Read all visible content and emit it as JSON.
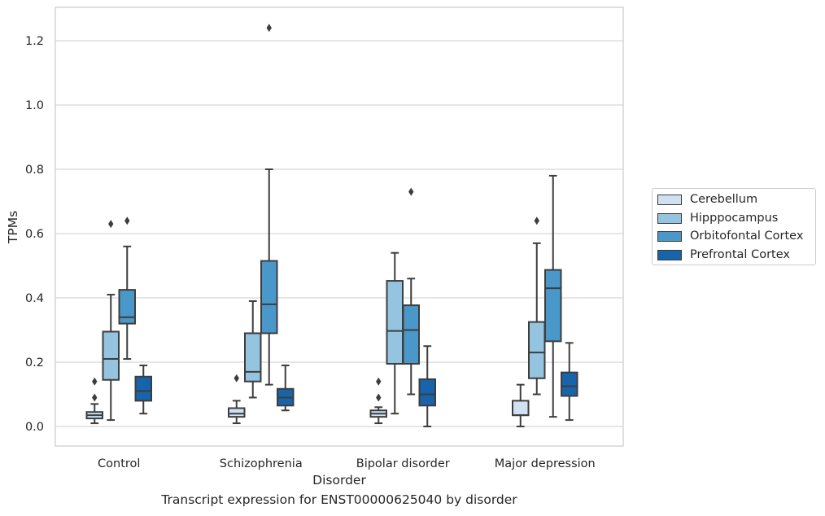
{
  "caption": "Transcript expression for ENST00000625040 by disorder",
  "chart_data": {
    "type": "boxplot",
    "xlabel": "Disorder",
    "ylabel": "TPMs",
    "ylim": [
      -0.06,
      1.3
    ],
    "yticks": [
      0.0,
      0.2,
      0.4,
      0.6,
      0.8,
      1.0,
      1.2
    ],
    "ytick_labels": [
      "0.0",
      "0.2",
      "0.4",
      "0.6",
      "0.8",
      "1.0",
      "1.2"
    ],
    "grid": "horizontal",
    "legend_position": "right",
    "categories": [
      "Control",
      "Schizophrenia",
      "Bipolar disorder",
      "Major depression"
    ],
    "series": [
      {
        "name": "Cerebellum",
        "color": "#d0e1f2",
        "boxes": [
          {
            "whislo": 0.01,
            "q1": 0.025,
            "med": 0.035,
            "q3": 0.045,
            "whishi": 0.07,
            "fliers": [
              0.09,
              0.14
            ]
          },
          {
            "whislo": 0.01,
            "q1": 0.03,
            "med": 0.04,
            "q3": 0.057,
            "whishi": 0.08,
            "fliers": [
              0.15
            ]
          },
          {
            "whislo": 0.01,
            "q1": 0.03,
            "med": 0.04,
            "q3": 0.05,
            "whishi": 0.06,
            "fliers": [
              0.09,
              0.14
            ]
          },
          {
            "whislo": 0.0,
            "q1": 0.035,
            "med": 0.035,
            "q3": 0.08,
            "whishi": 0.13,
            "fliers": []
          }
        ]
      },
      {
        "name": "Hipppocampus",
        "color": "#94c4df",
        "boxes": [
          {
            "whislo": 0.02,
            "q1": 0.145,
            "med": 0.21,
            "q3": 0.295,
            "whishi": 0.41,
            "fliers": [
              0.63
            ]
          },
          {
            "whislo": 0.09,
            "q1": 0.14,
            "med": 0.17,
            "q3": 0.29,
            "whishi": 0.39,
            "fliers": []
          },
          {
            "whislo": 0.04,
            "q1": 0.195,
            "med": 0.297,
            "q3": 0.453,
            "whishi": 0.54,
            "fliers": []
          },
          {
            "whislo": 0.1,
            "q1": 0.15,
            "med": 0.23,
            "q3": 0.325,
            "whishi": 0.57,
            "fliers": [
              0.64
            ]
          }
        ]
      },
      {
        "name": "Orbitofontal Cortex",
        "color": "#4a98c9",
        "boxes": [
          {
            "whislo": 0.21,
            "q1": 0.32,
            "med": 0.34,
            "q3": 0.425,
            "whishi": 0.56,
            "fliers": [
              0.64
            ]
          },
          {
            "whislo": 0.13,
            "q1": 0.29,
            "med": 0.38,
            "q3": 0.515,
            "whishi": 0.8,
            "fliers": [
              1.24
            ]
          },
          {
            "whislo": 0.1,
            "q1": 0.195,
            "med": 0.3,
            "q3": 0.377,
            "whishi": 0.46,
            "fliers": [
              0.73
            ]
          },
          {
            "whislo": 0.03,
            "q1": 0.265,
            "med": 0.43,
            "q3": 0.487,
            "whishi": 0.78,
            "fliers": []
          }
        ]
      },
      {
        "name": "Prefrontal Cortex",
        "color": "#1764ab",
        "boxes": [
          {
            "whislo": 0.04,
            "q1": 0.08,
            "med": 0.11,
            "q3": 0.155,
            "whishi": 0.19,
            "fliers": []
          },
          {
            "whislo": 0.05,
            "q1": 0.065,
            "med": 0.09,
            "q3": 0.117,
            "whishi": 0.19,
            "fliers": []
          },
          {
            "whislo": 0.0,
            "q1": 0.065,
            "med": 0.1,
            "q3": 0.147,
            "whishi": 0.25,
            "fliers": []
          },
          {
            "whislo": 0.02,
            "q1": 0.095,
            "med": 0.125,
            "q3": 0.168,
            "whishi": 0.26,
            "fliers": []
          }
        ]
      }
    ]
  }
}
